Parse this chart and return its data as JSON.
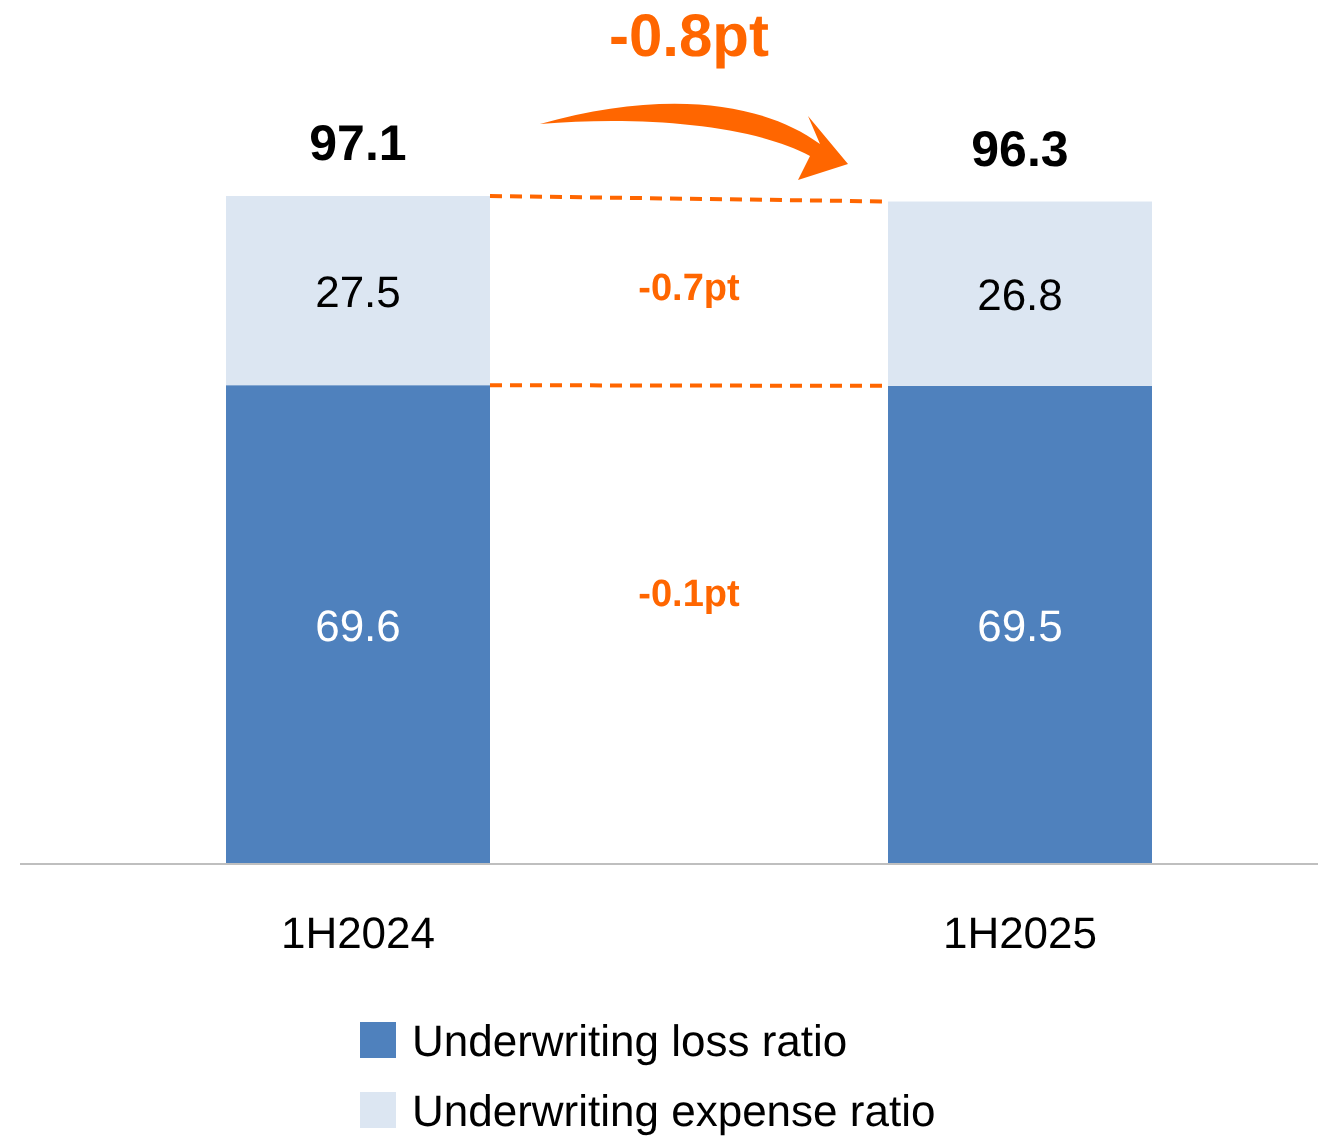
{
  "chart_data": {
    "type": "bar",
    "stacked": true,
    "categories": [
      "1H2024",
      "1H2025"
    ],
    "series": [
      {
        "name": "Underwriting loss ratio",
        "color": "#4f81bd",
        "values": [
          69.6,
          69.5
        ]
      },
      {
        "name": "Underwriting expense ratio",
        "color": "#dce6f2",
        "values": [
          27.5,
          26.8
        ]
      }
    ],
    "data_labels": true,
    "totals": [
      "97.1",
      "96.3"
    ],
    "legend": "bottom",
    "annotations": [
      "-0.8pt",
      "-0.7pt",
      "-0.1pt"
    ]
  }
}
